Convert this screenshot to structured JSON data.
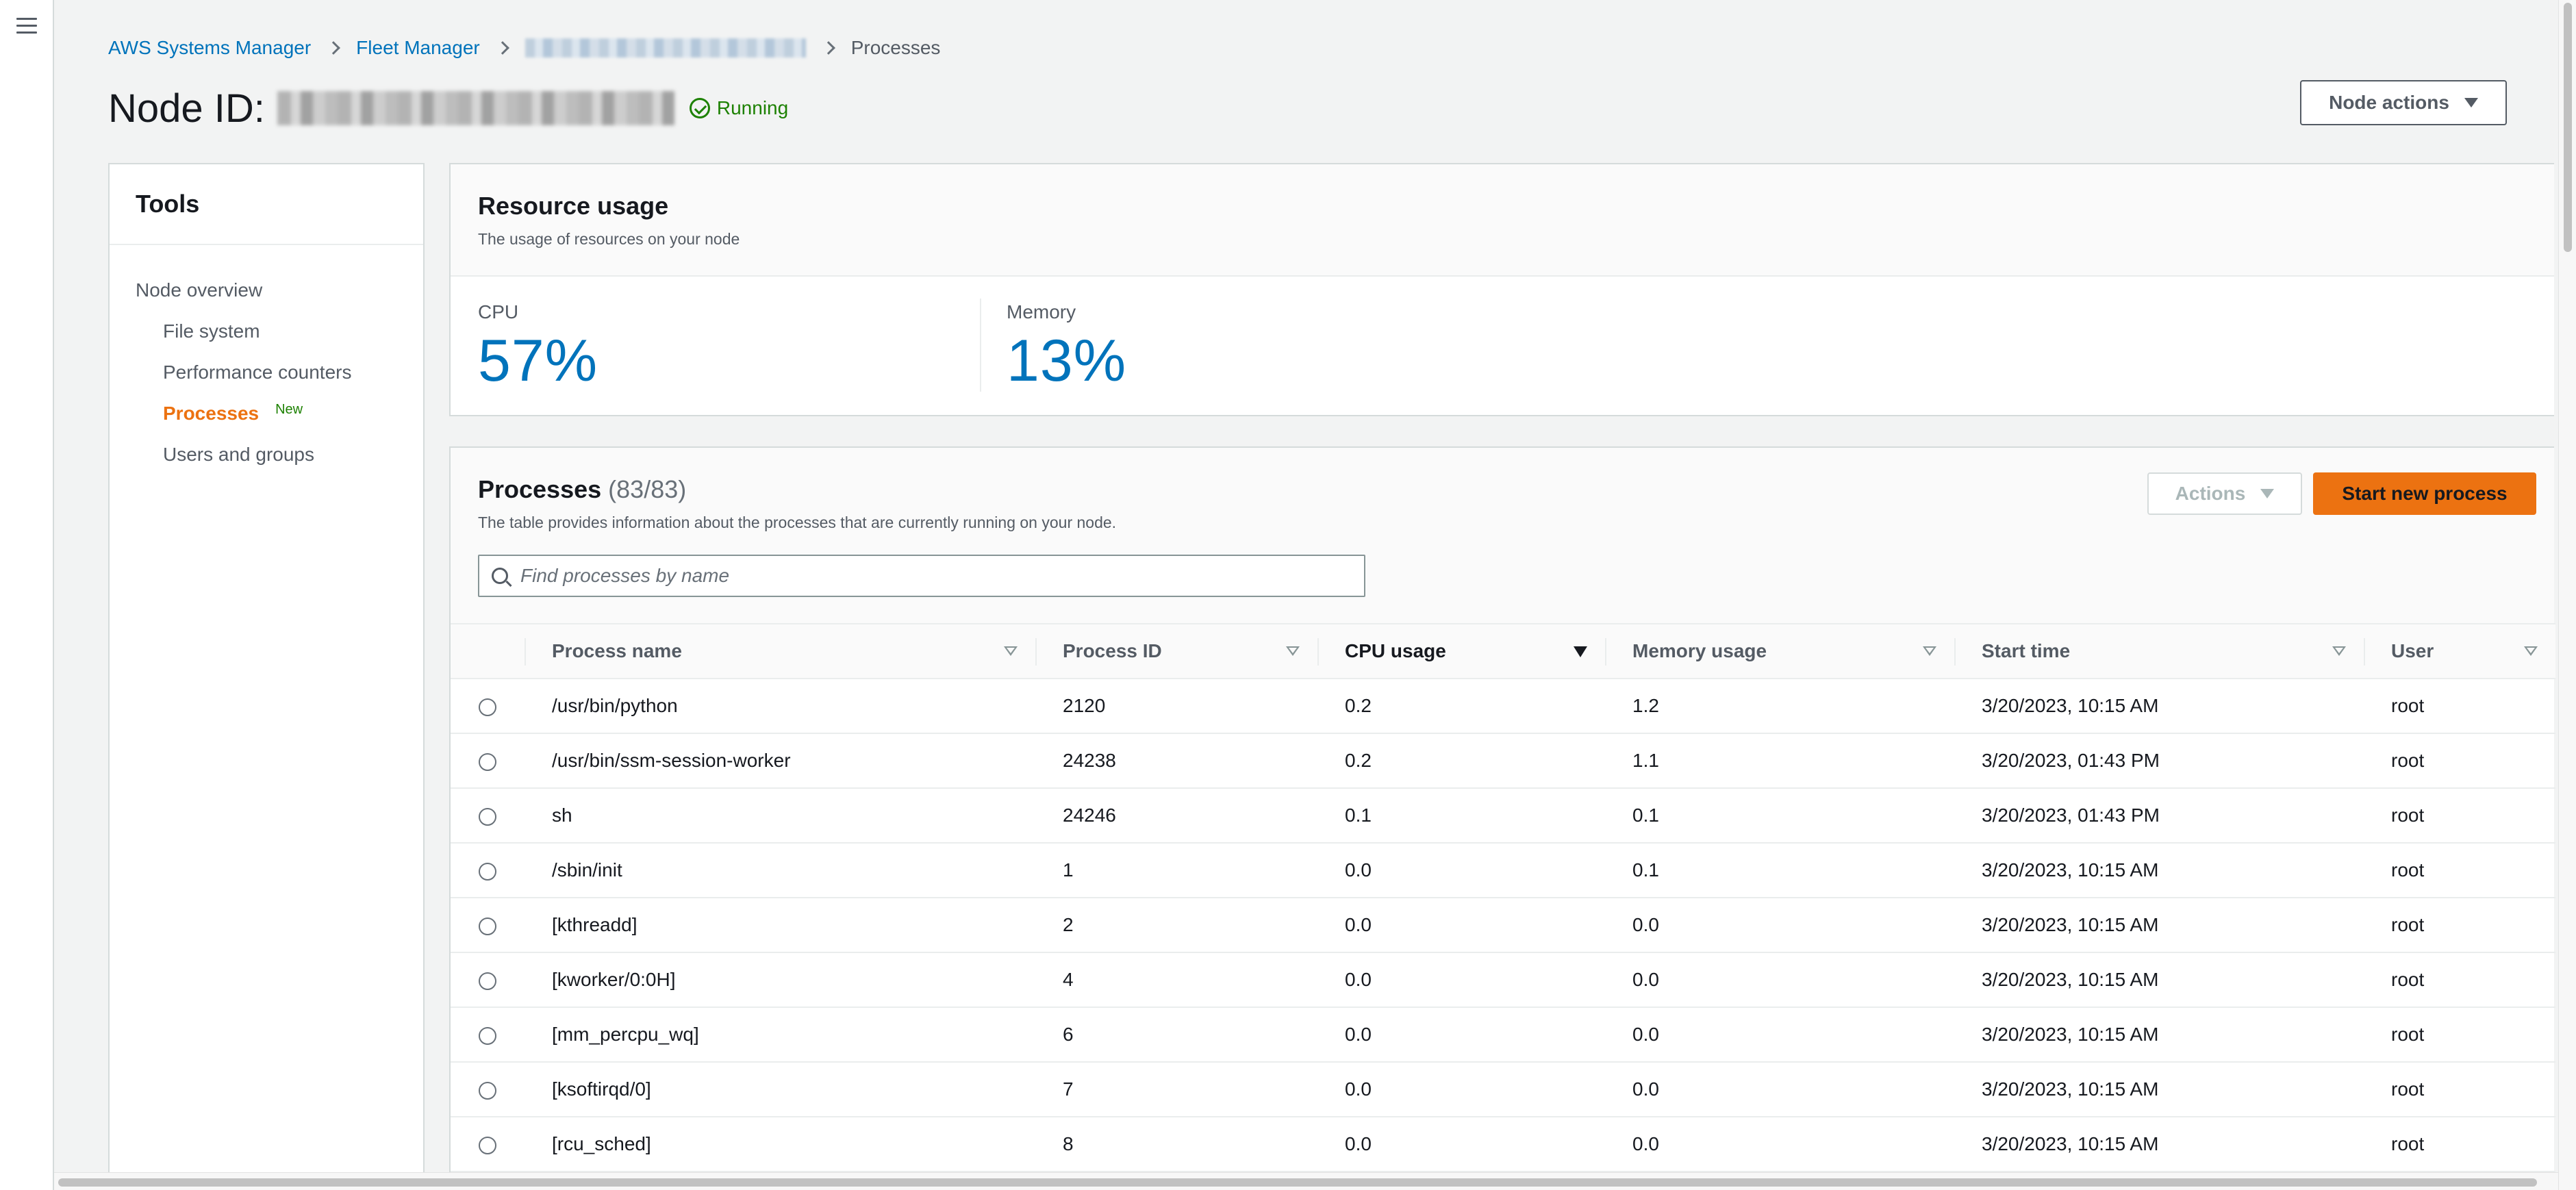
{
  "nav": {
    "menu_icon": "hamburger-menu-icon"
  },
  "breadcrumb": {
    "items": [
      "AWS Systems Manager",
      "Fleet Manager"
    ],
    "current": "Processes"
  },
  "header": {
    "title_prefix": "Node ID:",
    "status": "Running",
    "node_actions_label": "Node actions"
  },
  "tools": {
    "title": "Tools",
    "items": [
      {
        "label": "Node overview",
        "level": 0
      },
      {
        "label": "File system",
        "level": 1
      },
      {
        "label": "Performance counters",
        "level": 1
      },
      {
        "label": "Processes",
        "level": 1,
        "active": true,
        "badge": "New"
      },
      {
        "label": "Users and groups",
        "level": 1
      }
    ]
  },
  "resource_usage": {
    "title": "Resource usage",
    "description": "The usage of resources on your node",
    "cpu_label": "CPU",
    "cpu_value": "57%",
    "memory_label": "Memory",
    "memory_value": "13%"
  },
  "processes": {
    "title": "Processes",
    "count": "(83/83)",
    "description": "The table provides information about the processes that are currently running on your node.",
    "actions_label": "Actions",
    "start_label": "Start new process",
    "search_placeholder": "Find processes by name",
    "columns": [
      "Process name",
      "Process ID",
      "CPU usage",
      "Memory usage",
      "Start time",
      "User"
    ],
    "sorted_column": "CPU usage",
    "rows": [
      [
        "/usr/bin/python",
        "2120",
        "0.2",
        "1.2",
        "3/20/2023, 10:15 AM",
        "root"
      ],
      [
        "/usr/bin/ssm-session-worker",
        "24238",
        "0.2",
        "1.1",
        "3/20/2023, 01:43 PM",
        "root"
      ],
      [
        "sh",
        "24246",
        "0.1",
        "0.1",
        "3/20/2023, 01:43 PM",
        "root"
      ],
      [
        "/sbin/init",
        "1",
        "0.0",
        "0.1",
        "3/20/2023, 10:15 AM",
        "root"
      ],
      [
        "[kthreadd]",
        "2",
        "0.0",
        "0.0",
        "3/20/2023, 10:15 AM",
        "root"
      ],
      [
        "[kworker/0:0H]",
        "4",
        "0.0",
        "0.0",
        "3/20/2023, 10:15 AM",
        "root"
      ],
      [
        "[mm_percpu_wq]",
        "6",
        "0.0",
        "0.0",
        "3/20/2023, 10:15 AM",
        "root"
      ],
      [
        "[ksoftirqd/0]",
        "7",
        "0.0",
        "0.0",
        "3/20/2023, 10:15 AM",
        "root"
      ],
      [
        "[rcu_sched]",
        "8",
        "0.0",
        "0.0",
        "3/20/2023, 10:15 AM",
        "root"
      ]
    ]
  },
  "colors": {
    "link": "#0073bb",
    "primary_button": "#ec7211",
    "status_ok": "#1d8102",
    "metric": "#0073bb"
  }
}
